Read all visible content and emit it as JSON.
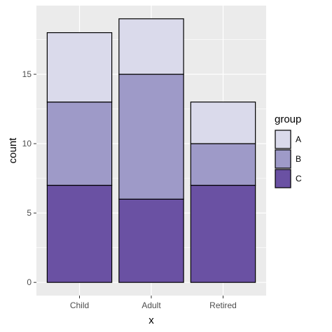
{
  "chart_data": {
    "type": "bar",
    "stacked": true,
    "categories": [
      "Child",
      "Adult",
      "Retired"
    ],
    "series": [
      {
        "name": "A",
        "values": [
          5,
          4,
          3
        ],
        "color": "#dadaeb"
      },
      {
        "name": "B",
        "values": [
          6,
          9,
          3
        ],
        "color": "#9e9ac8"
      },
      {
        "name": "C",
        "values": [
          7,
          6,
          7
        ],
        "color": "#6a51a3"
      }
    ],
    "stack_order_bottom_to_top": [
      "C",
      "B",
      "A"
    ],
    "xlabel": "x",
    "ylabel": "count",
    "ylim": [
      -0.95,
      19.95
    ],
    "yticks": [
      0,
      5,
      10,
      15
    ],
    "grid": true,
    "legend": {
      "title": "group",
      "position": "right",
      "entries": [
        "A",
        "B",
        "C"
      ]
    },
    "panel_background": "#ebebeb",
    "gridline_color": "#ffffff",
    "bar_outline": "#000000"
  }
}
